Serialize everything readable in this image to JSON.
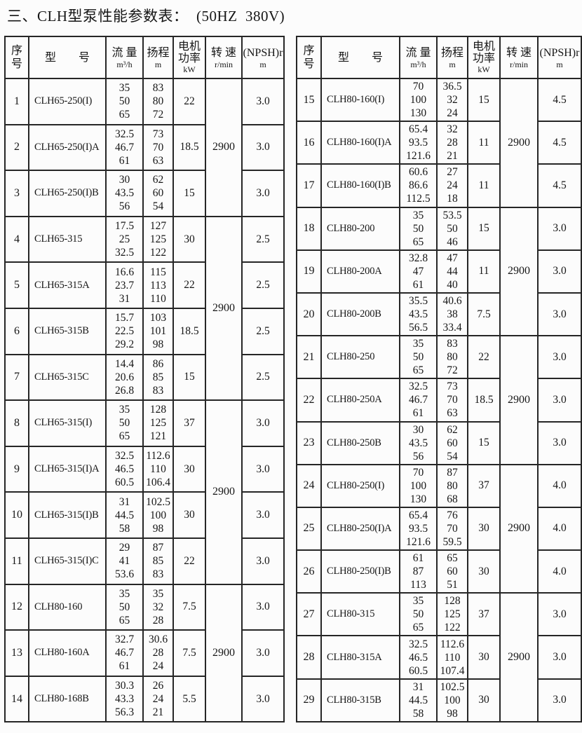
{
  "page": {
    "title": "三、CLH型泵性能参数表：  (50HZ  380V)"
  },
  "columns": {
    "seq": "序\n号",
    "model": "型        号",
    "flow": "流 量",
    "flow_unit": "m³/h",
    "head": "扬程",
    "head_unit": "m",
    "power": "电机\n功率",
    "power_unit": "kW",
    "speed": "转 速",
    "speed_unit": "r/min",
    "npsh": "(NPSH)r",
    "npsh_unit": "m"
  },
  "tables": [
    {
      "name": "left",
      "rows": [
        {
          "no": "1",
          "model": "CLH65-250(I)",
          "flow": [
            "35",
            "50",
            "65"
          ],
          "head": [
            "83",
            "80",
            "72"
          ],
          "power": "22",
          "speed": "2900",
          "speed_span": 3,
          "npsh": "3.0"
        },
        {
          "no": "2",
          "model": "CLH65-250(I)A",
          "flow": [
            "32.5",
            "46.7",
            "61"
          ],
          "head": [
            "73",
            "70",
            "63"
          ],
          "power": "18.5",
          "npsh": "3.0"
        },
        {
          "no": "3",
          "model": "CLH65-250(I)B",
          "flow": [
            "30",
            "43.5",
            "56"
          ],
          "head": [
            "62",
            "60",
            "54"
          ],
          "power": "15",
          "npsh": "3.0"
        },
        {
          "no": "4",
          "model": "CLH65-315",
          "flow": [
            "17.5",
            "25",
            "32.5"
          ],
          "head": [
            "127",
            "125",
            "122"
          ],
          "power": "30",
          "speed": "2900",
          "speed_span": 4,
          "npsh": "2.5"
        },
        {
          "no": "5",
          "model": "CLH65-315A",
          "flow": [
            "16.6",
            "23.7",
            "31"
          ],
          "head": [
            "115",
            "113",
            "110"
          ],
          "power": "22",
          "npsh": "2.5"
        },
        {
          "no": "6",
          "model": "CLH65-315B",
          "flow": [
            "15.7",
            "22.5",
            "29.2"
          ],
          "head": [
            "103",
            "101",
            "98"
          ],
          "power": "18.5",
          "npsh": "2.5"
        },
        {
          "no": "7",
          "model": "CLH65-315C",
          "flow": [
            "14.4",
            "20.6",
            "26.8"
          ],
          "head": [
            "86",
            "85",
            "83"
          ],
          "power": "15",
          "npsh": "2.5"
        },
        {
          "no": "8",
          "model": "CLH65-315(I)",
          "flow": [
            "35",
            "50",
            "65"
          ],
          "head": [
            "128",
            "125",
            "121"
          ],
          "power": "37",
          "speed": "2900",
          "speed_span": 4,
          "npsh": "3.0"
        },
        {
          "no": "9",
          "model": "CLH65-315(I)A",
          "flow": [
            "32.5",
            "46.5",
            "60.5"
          ],
          "head": [
            "112.6",
            "110",
            "106.4"
          ],
          "power": "30",
          "npsh": "3.0"
        },
        {
          "no": "10",
          "model": "CLH65-315(I)B",
          "flow": [
            "31",
            "44.5",
            "58"
          ],
          "head": [
            "102.5",
            "100",
            "98"
          ],
          "power": "30",
          "npsh": "3.0"
        },
        {
          "no": "11",
          "model": "CLH65-315(I)C",
          "flow": [
            "29",
            "41",
            "53.6"
          ],
          "head": [
            "87",
            "85",
            "83"
          ],
          "power": "22",
          "npsh": "3.0"
        },
        {
          "no": "12",
          "model": "CLH80-160",
          "flow": [
            "35",
            "50",
            "65"
          ],
          "head": [
            "35",
            "32",
            "28"
          ],
          "power": "7.5",
          "speed": "2900",
          "speed_span": 3,
          "npsh": "3.0"
        },
        {
          "no": "13",
          "model": "CLH80-160A",
          "flow": [
            "32.7",
            "46.7",
            "61"
          ],
          "head": [
            "30.6",
            "28",
            "24"
          ],
          "power": "7.5",
          "npsh": "3.0"
        },
        {
          "no": "14",
          "model": "CLH80-168B",
          "flow": [
            "30.3",
            "43.3",
            "56.3"
          ],
          "head": [
            "26",
            "24",
            "21"
          ],
          "power": "5.5",
          "npsh": "3.0"
        }
      ]
    },
    {
      "name": "right",
      "rows": [
        {
          "no": "15",
          "model": "CLH80-160(I)",
          "flow": [
            "70",
            "100",
            "130"
          ],
          "head": [
            "36.5",
            "32",
            "24"
          ],
          "power": "15",
          "speed": "2900",
          "speed_span": 3,
          "npsh": "4.5"
        },
        {
          "no": "16",
          "model": "CLH80-160(I)A",
          "flow": [
            "65.4",
            "93.5",
            "121.6"
          ],
          "head": [
            "32",
            "28",
            "21"
          ],
          "power": "11",
          "npsh": "4.5"
        },
        {
          "no": "17",
          "model": "CLH80-160(I)B",
          "flow": [
            "60.6",
            "86.6",
            "112.5"
          ],
          "head": [
            "27",
            "24",
            "18"
          ],
          "power": "11",
          "npsh": "4.5"
        },
        {
          "no": "18",
          "model": "CLH80-200",
          "flow": [
            "35",
            "50",
            "65"
          ],
          "head": [
            "53.5",
            "50",
            "46"
          ],
          "power": "15",
          "speed": "2900",
          "speed_span": 3,
          "npsh": "3.0"
        },
        {
          "no": "19",
          "model": "CLH80-200A",
          "flow": [
            "32.8",
            "47",
            "61"
          ],
          "head": [
            "47",
            "44",
            "40"
          ],
          "power": "11",
          "npsh": "3.0"
        },
        {
          "no": "20",
          "model": "CLH80-200B",
          "flow": [
            "35.5",
            "43.5",
            "56.5"
          ],
          "head": [
            "40.6",
            "38",
            "33.4"
          ],
          "power": "7.5",
          "npsh": "3.0"
        },
        {
          "no": "21",
          "model": "CLH80-250",
          "flow": [
            "35",
            "50",
            "65"
          ],
          "head": [
            "83",
            "80",
            "72"
          ],
          "power": "22",
          "speed": "2900",
          "speed_span": 3,
          "npsh": "3.0"
        },
        {
          "no": "22",
          "model": "CLH80-250A",
          "flow": [
            "32.5",
            "46.7",
            "61"
          ],
          "head": [
            "73",
            "70",
            "63"
          ],
          "power": "18.5",
          "npsh": "3.0"
        },
        {
          "no": "23",
          "model": "CLH80-250B",
          "flow": [
            "30",
            "43.5",
            "56"
          ],
          "head": [
            "62",
            "60",
            "54"
          ],
          "power": "15",
          "npsh": "3.0"
        },
        {
          "no": "24",
          "model": "CLH80-250(I)",
          "flow": [
            "70",
            "100",
            "130"
          ],
          "head": [
            "87",
            "80",
            "68"
          ],
          "power": "37",
          "speed": "2900",
          "speed_span": 3,
          "npsh": "4.0"
        },
        {
          "no": "25",
          "model": "CLH80-250(I)A",
          "flow": [
            "65.4",
            "93.5",
            "121.6"
          ],
          "head": [
            "76",
            "70",
            "59.5"
          ],
          "power": "30",
          "npsh": "4.0"
        },
        {
          "no": "26",
          "model": "CLH80-250(I)B",
          "flow": [
            "61",
            "87",
            "113"
          ],
          "head": [
            "65",
            "60",
            "51"
          ],
          "power": "30",
          "npsh": "4.0"
        },
        {
          "no": "27",
          "model": "CLH80-315",
          "flow": [
            "35",
            "50",
            "65"
          ],
          "head": [
            "128",
            "125",
            "122"
          ],
          "power": "37",
          "speed": "2900",
          "speed_span": 3,
          "npsh": "3.0"
        },
        {
          "no": "28",
          "model": "CLH80-315A",
          "flow": [
            "32.5",
            "46.5",
            "60.5"
          ],
          "head": [
            "112.6",
            "110",
            "107.4"
          ],
          "power": "30",
          "npsh": "3.0"
        },
        {
          "no": "29",
          "model": "CLH80-315B",
          "flow": [
            "31",
            "44.5",
            "58"
          ],
          "head": [
            "102.5",
            "100",
            "98"
          ],
          "power": "30",
          "npsh": "3.0"
        }
      ]
    }
  ]
}
